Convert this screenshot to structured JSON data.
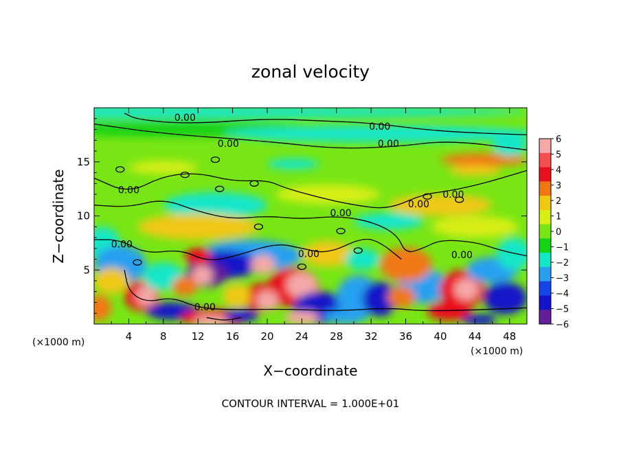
{
  "chart_data": {
    "type": "heatmap",
    "title": "zonal velocity",
    "xlabel": "X−coordinate",
    "ylabel": "Z−coordinate",
    "x_units": "(×1000 m)",
    "z_units": "(×1000 m)",
    "xlim": [
      0,
      50
    ],
    "ylim": [
      0,
      20
    ],
    "x_ticks": [
      4,
      8,
      12,
      16,
      20,
      24,
      28,
      32,
      36,
      40,
      44,
      48
    ],
    "y_ticks": [
      5,
      10,
      15
    ],
    "colorbar": {
      "ticks": [
        6,
        5,
        4,
        3,
        2,
        1,
        0,
        -1,
        -2,
        -3,
        -4,
        -5,
        -6
      ],
      "tick_labels": [
        "6",
        "5",
        "4",
        "3",
        "2",
        "1",
        "0",
        "−1",
        "−2",
        "−3",
        "−4",
        "−5",
        "−6"
      ],
      "colors": [
        "#f4a8a8",
        "#f45050",
        "#e8101c",
        "#f07814",
        "#f0c814",
        "#d8ee14",
        "#78e614",
        "#14d214",
        "#14e6c8",
        "#28a0f0",
        "#1446e6",
        "#1414c8",
        "#641e9b"
      ]
    },
    "contour_level_label": "0.00",
    "contour_labels": [
      "0.00",
      "0.00",
      "0.00",
      "0.00",
      "0.00",
      "0.00",
      "0.00",
      "0.00",
      "0.00",
      "0.00",
      "0.00",
      "0.00"
    ],
    "footer": "CONTOUR INTERVAL = 1.000E+01",
    "colors": {
      "background_field": "#78e614",
      "contour_line": "#000000"
    }
  }
}
